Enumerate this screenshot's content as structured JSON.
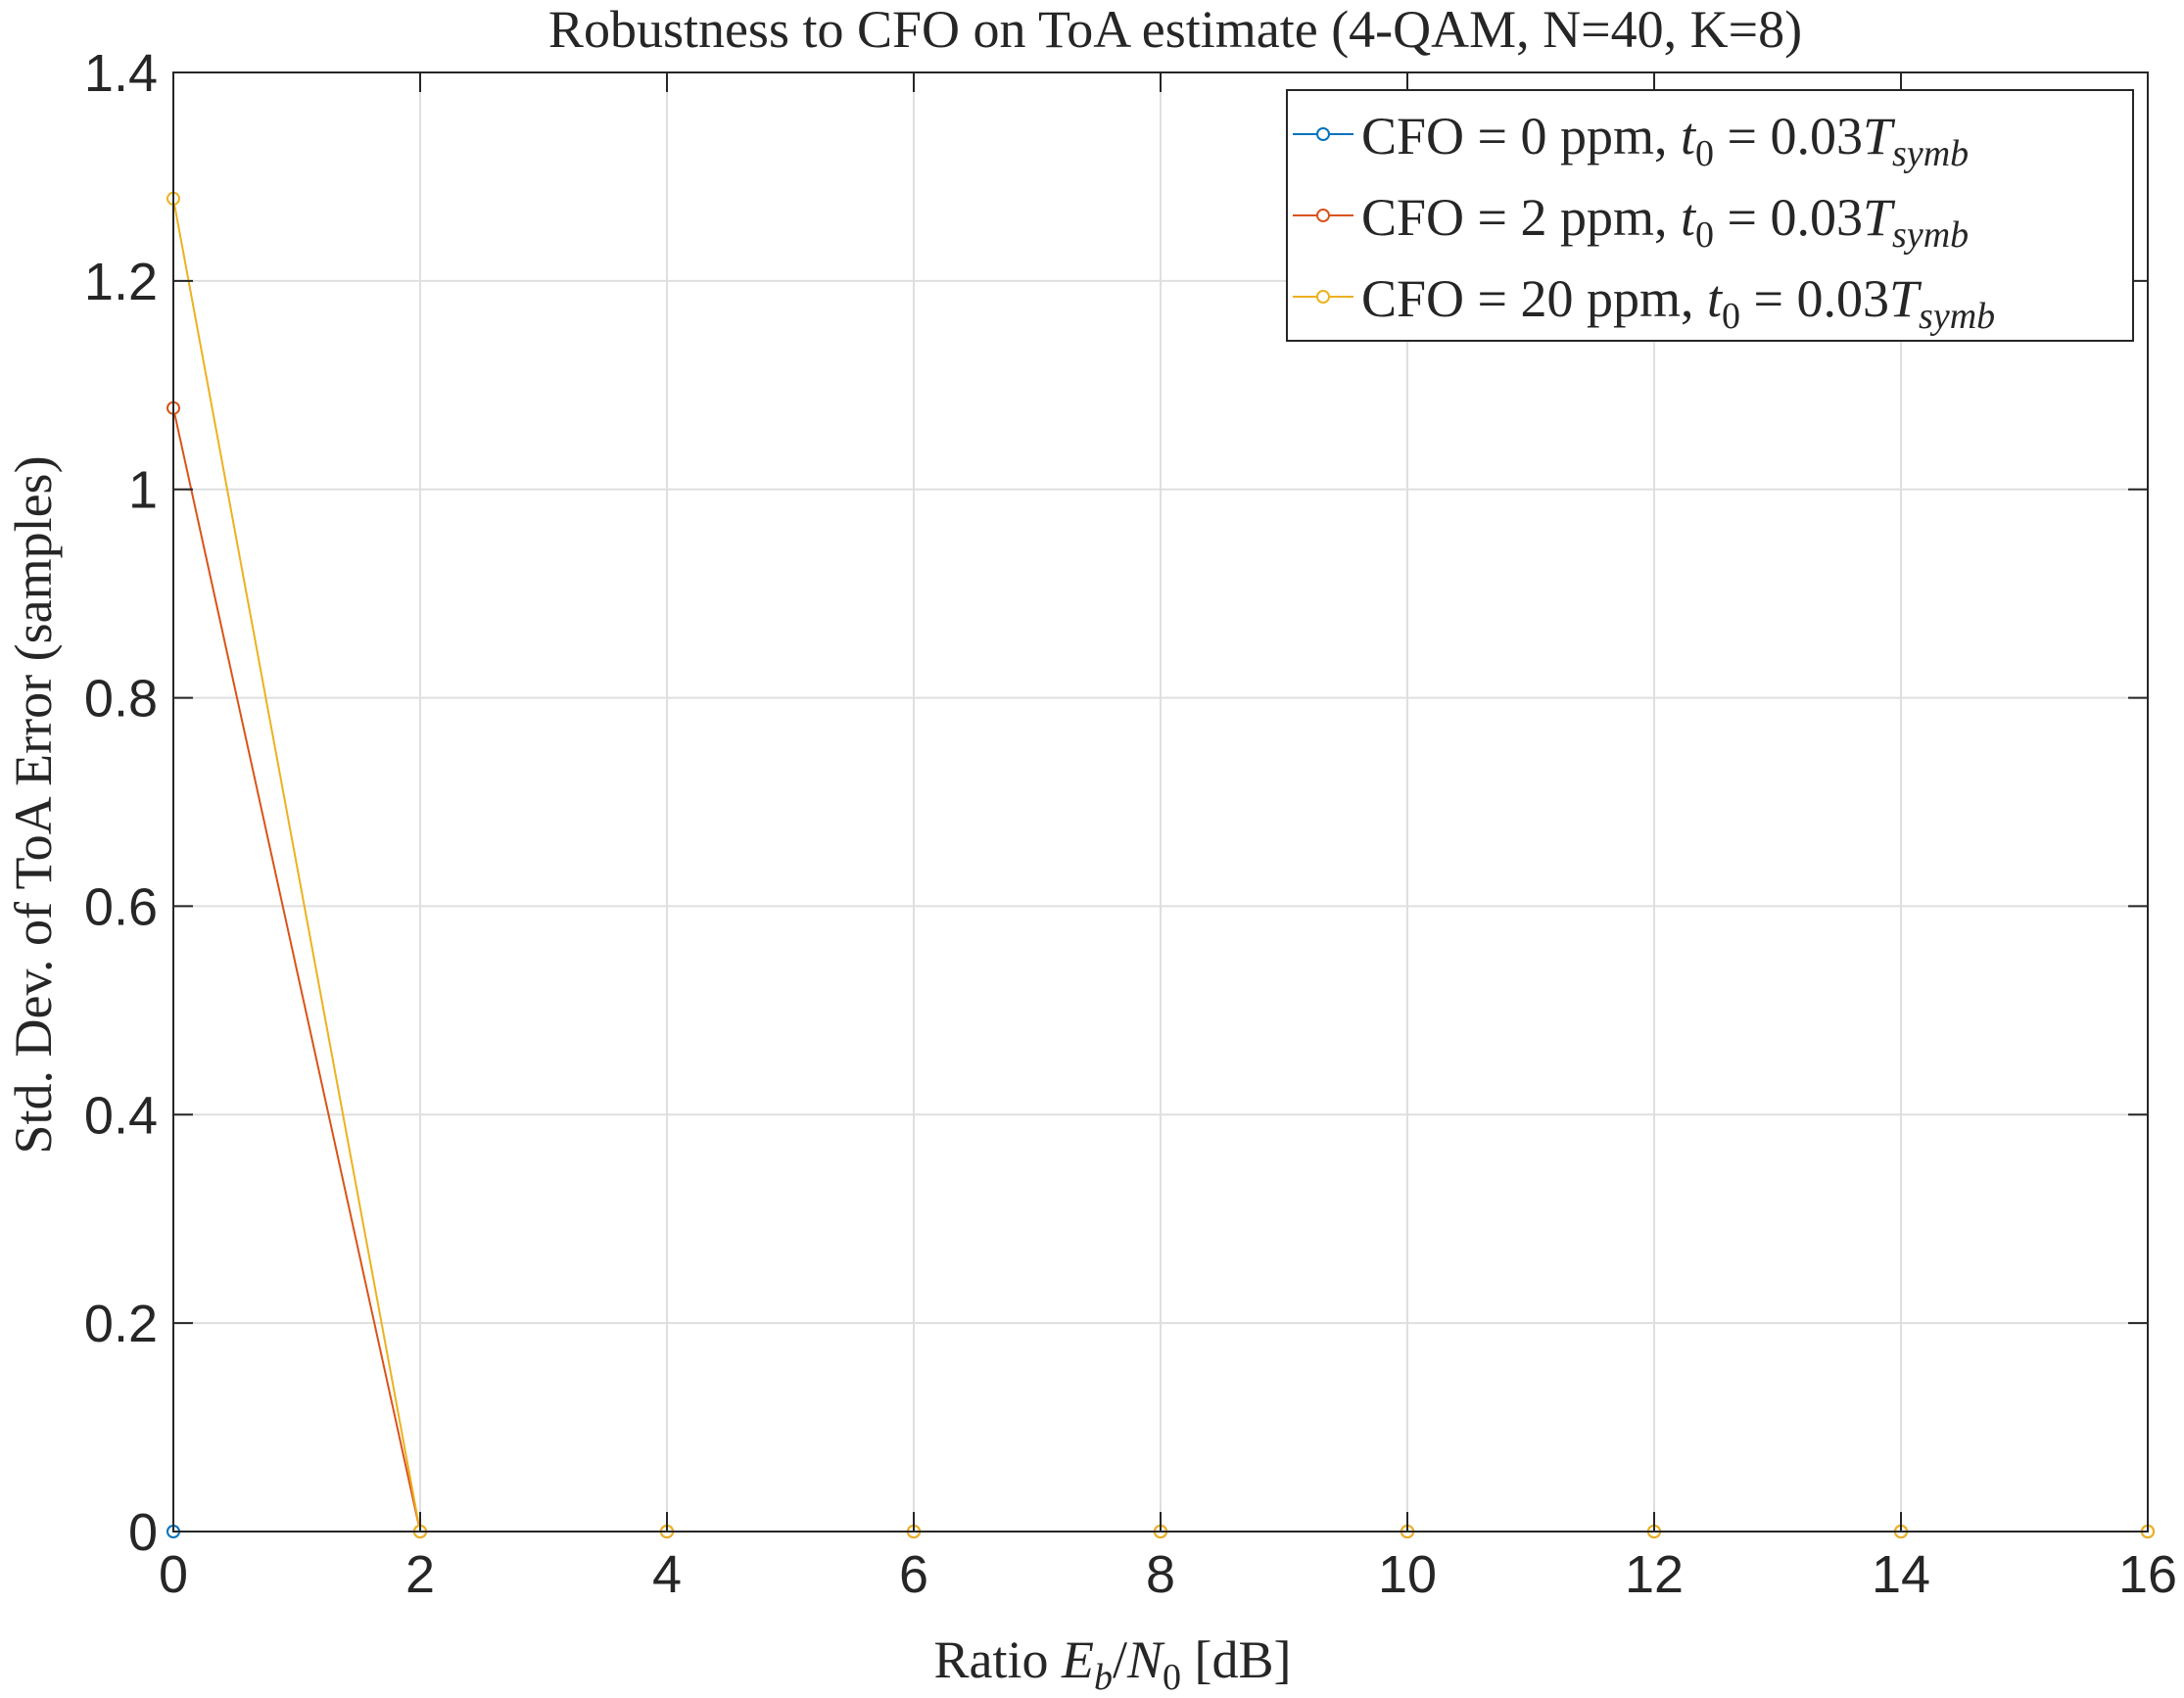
{
  "chart_data": {
    "type": "line",
    "title": "Robustness to CFO on ToA estimate (4-QAM, N=40, K=8)",
    "xlabel": {
      "prefix": "Ratio ",
      "E": "E",
      "b": "b",
      "slash": "/",
      "N": "N",
      "zero": "0",
      "suffix": " [dB]"
    },
    "ylabel": "Std. Dev. of ToA Error (samples)",
    "xlim": [
      0,
      16
    ],
    "ylim": [
      0,
      1.4
    ],
    "xticks": [
      0,
      2,
      4,
      6,
      8,
      10,
      12,
      14,
      16
    ],
    "yticks": [
      0,
      0.2,
      0.4,
      0.6,
      0.8,
      1,
      1.2,
      1.4
    ],
    "xtick_labels": [
      "0",
      "2",
      "4",
      "6",
      "8",
      "10",
      "12",
      "14",
      "16"
    ],
    "ytick_labels": [
      "0",
      "0.2",
      "0.4",
      "0.6",
      "0.8",
      "1",
      "1.2",
      "1.4"
    ],
    "grid": true,
    "legend_position": "top-right",
    "x": [
      0,
      2,
      4,
      6,
      8,
      10,
      12,
      14,
      16
    ],
    "series": [
      {
        "name": "CFO = 0 ppm, t0 = 0.03Tsymb",
        "legend_parts": {
          "a": "CFO = 0 ppm, ",
          "t": "t",
          "t_sub": "0",
          "b": " = 0.03",
          "T": "T",
          "T_sub": "symb"
        },
        "color": "#0072BD",
        "values": [
          0,
          0,
          0,
          0,
          0,
          0,
          0,
          0,
          0
        ]
      },
      {
        "name": "CFO = 2 ppm, t0 = 0.03Tsymb",
        "legend_parts": {
          "a": "CFO = 2 ppm, ",
          "t": "t",
          "t_sub": "0",
          "b": " = 0.03",
          "T": "T",
          "T_sub": "symb"
        },
        "color": "#D95319",
        "values": [
          1.078,
          0,
          0,
          0,
          0,
          0,
          0,
          0,
          0
        ]
      },
      {
        "name": "CFO = 20 ppm, t0 = 0.03Tsymb",
        "legend_parts": {
          "a": "CFO = 20 ppm, ",
          "t": "t",
          "t_sub": "0",
          "b": " = 0.03",
          "T": "T",
          "T_sub": "symb"
        },
        "color": "#EDB120",
        "values": [
          1.279,
          0,
          0,
          0,
          0,
          0,
          0,
          0,
          0
        ]
      }
    ]
  }
}
